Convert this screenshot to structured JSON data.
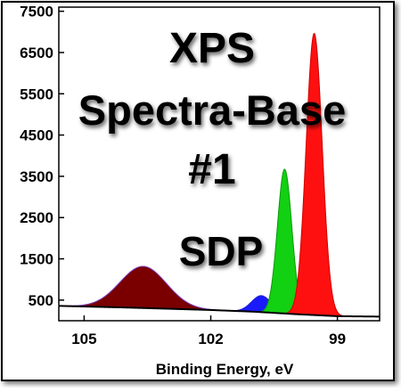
{
  "chart_data": {
    "type": "area",
    "title": [
      "XPS",
      "Spectra-Base",
      "#1",
      "SDP"
    ],
    "xlabel": "Binding Energy, eV",
    "ylabel": "",
    "xlim": [
      105.6,
      98.0
    ],
    "ylim": [
      0,
      7600
    ],
    "x_reversed": true,
    "x_ticks": [
      105,
      102,
      99
    ],
    "y_ticks": [
      500,
      1500,
      2500,
      3500,
      4500,
      5500,
      6500,
      7500
    ],
    "x_tick_labels": [
      "105",
      "102",
      "99"
    ],
    "y_tick_labels": [
      "500",
      "1500",
      "2500",
      "3500",
      "4500",
      "5500",
      "6500",
      "7500"
    ],
    "grid": false,
    "legend": "none",
    "background": {
      "name": "background",
      "points": [
        [
          105.6,
          360
        ],
        [
          104.0,
          320
        ],
        [
          102.0,
          260
        ],
        [
          101.0,
          220
        ],
        [
          100.0,
          160
        ],
        [
          99.0,
          110
        ],
        [
          98.0,
          100
        ]
      ]
    },
    "series": [
      {
        "name": "",
        "color": "#7a0000",
        "edge": "#7b3fbf",
        "center": 103.6,
        "height": 1010,
        "width": 0.55
      },
      {
        "name": "",
        "color": "#1a1aff",
        "edge": "#2020d0",
        "center": 100.8,
        "height": 400,
        "width": 0.23
      },
      {
        "name": "",
        "color": "#12d012",
        "edge": "#0a9a0a",
        "center": 100.25,
        "height": 3500,
        "width": 0.17
      },
      {
        "name": "",
        "color": "#ff1010",
        "edge": "#d00000",
        "center": 99.55,
        "height": 6830,
        "width": 0.19
      }
    ],
    "envelope_color": "#000000"
  }
}
